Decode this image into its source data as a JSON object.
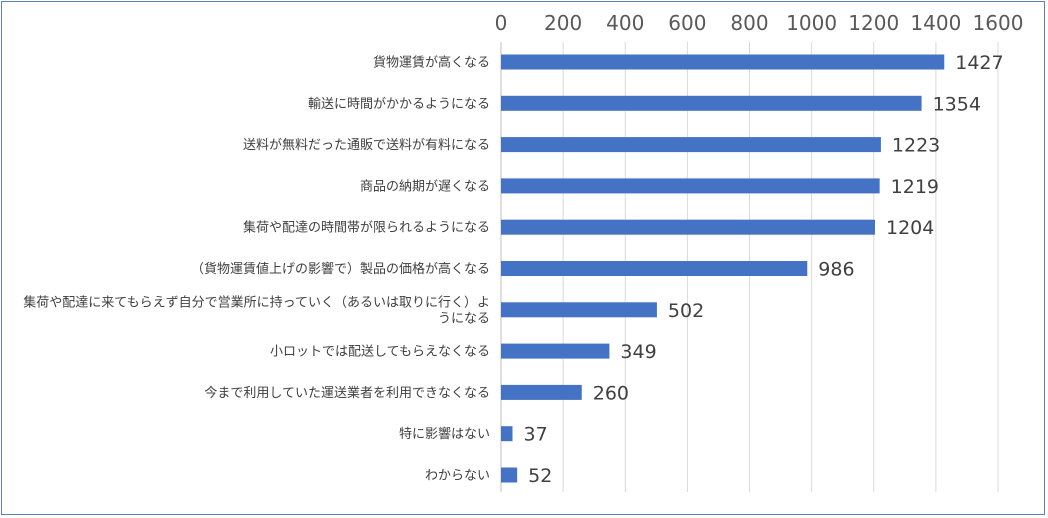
{
  "chart_data": {
    "type": "bar",
    "orientation": "horizontal",
    "title": "",
    "xlabel": "",
    "ylabel": "",
    "xlim": [
      0,
      1600
    ],
    "x_ticks": [
      "0",
      "200",
      "400",
      "600",
      "800",
      "1000",
      "1200",
      "1400",
      "1600"
    ],
    "x_axis_position": "top",
    "grid": true,
    "bar_color": "#4472C4",
    "categories": [
      [
        "貨物運賃が高くなる"
      ],
      [
        "輸送に時間がかかるようになる"
      ],
      [
        "送料が無料だった通販で送料が有料になる"
      ],
      [
        "商品の納期が遅くなる"
      ],
      [
        "集荷や配達の時間帯が限られるようになる"
      ],
      [
        "（貨物運賃値上げの影響で）製品の価格が高くなる"
      ],
      [
        "集荷や配達に来てもらえず自分で営業所に持っていく（あるいは取りに行く）よ",
        "うになる"
      ],
      [
        "小ロットでは配送してもらえなくなる"
      ],
      [
        "今まで利用していた運送業者を利用できなくなる"
      ],
      [
        "特に影響はない"
      ],
      [
        "わからない"
      ]
    ],
    "values": [
      1427,
      1354,
      1223,
      1219,
      1204,
      986,
      502,
      349,
      260,
      37,
      52
    ]
  }
}
